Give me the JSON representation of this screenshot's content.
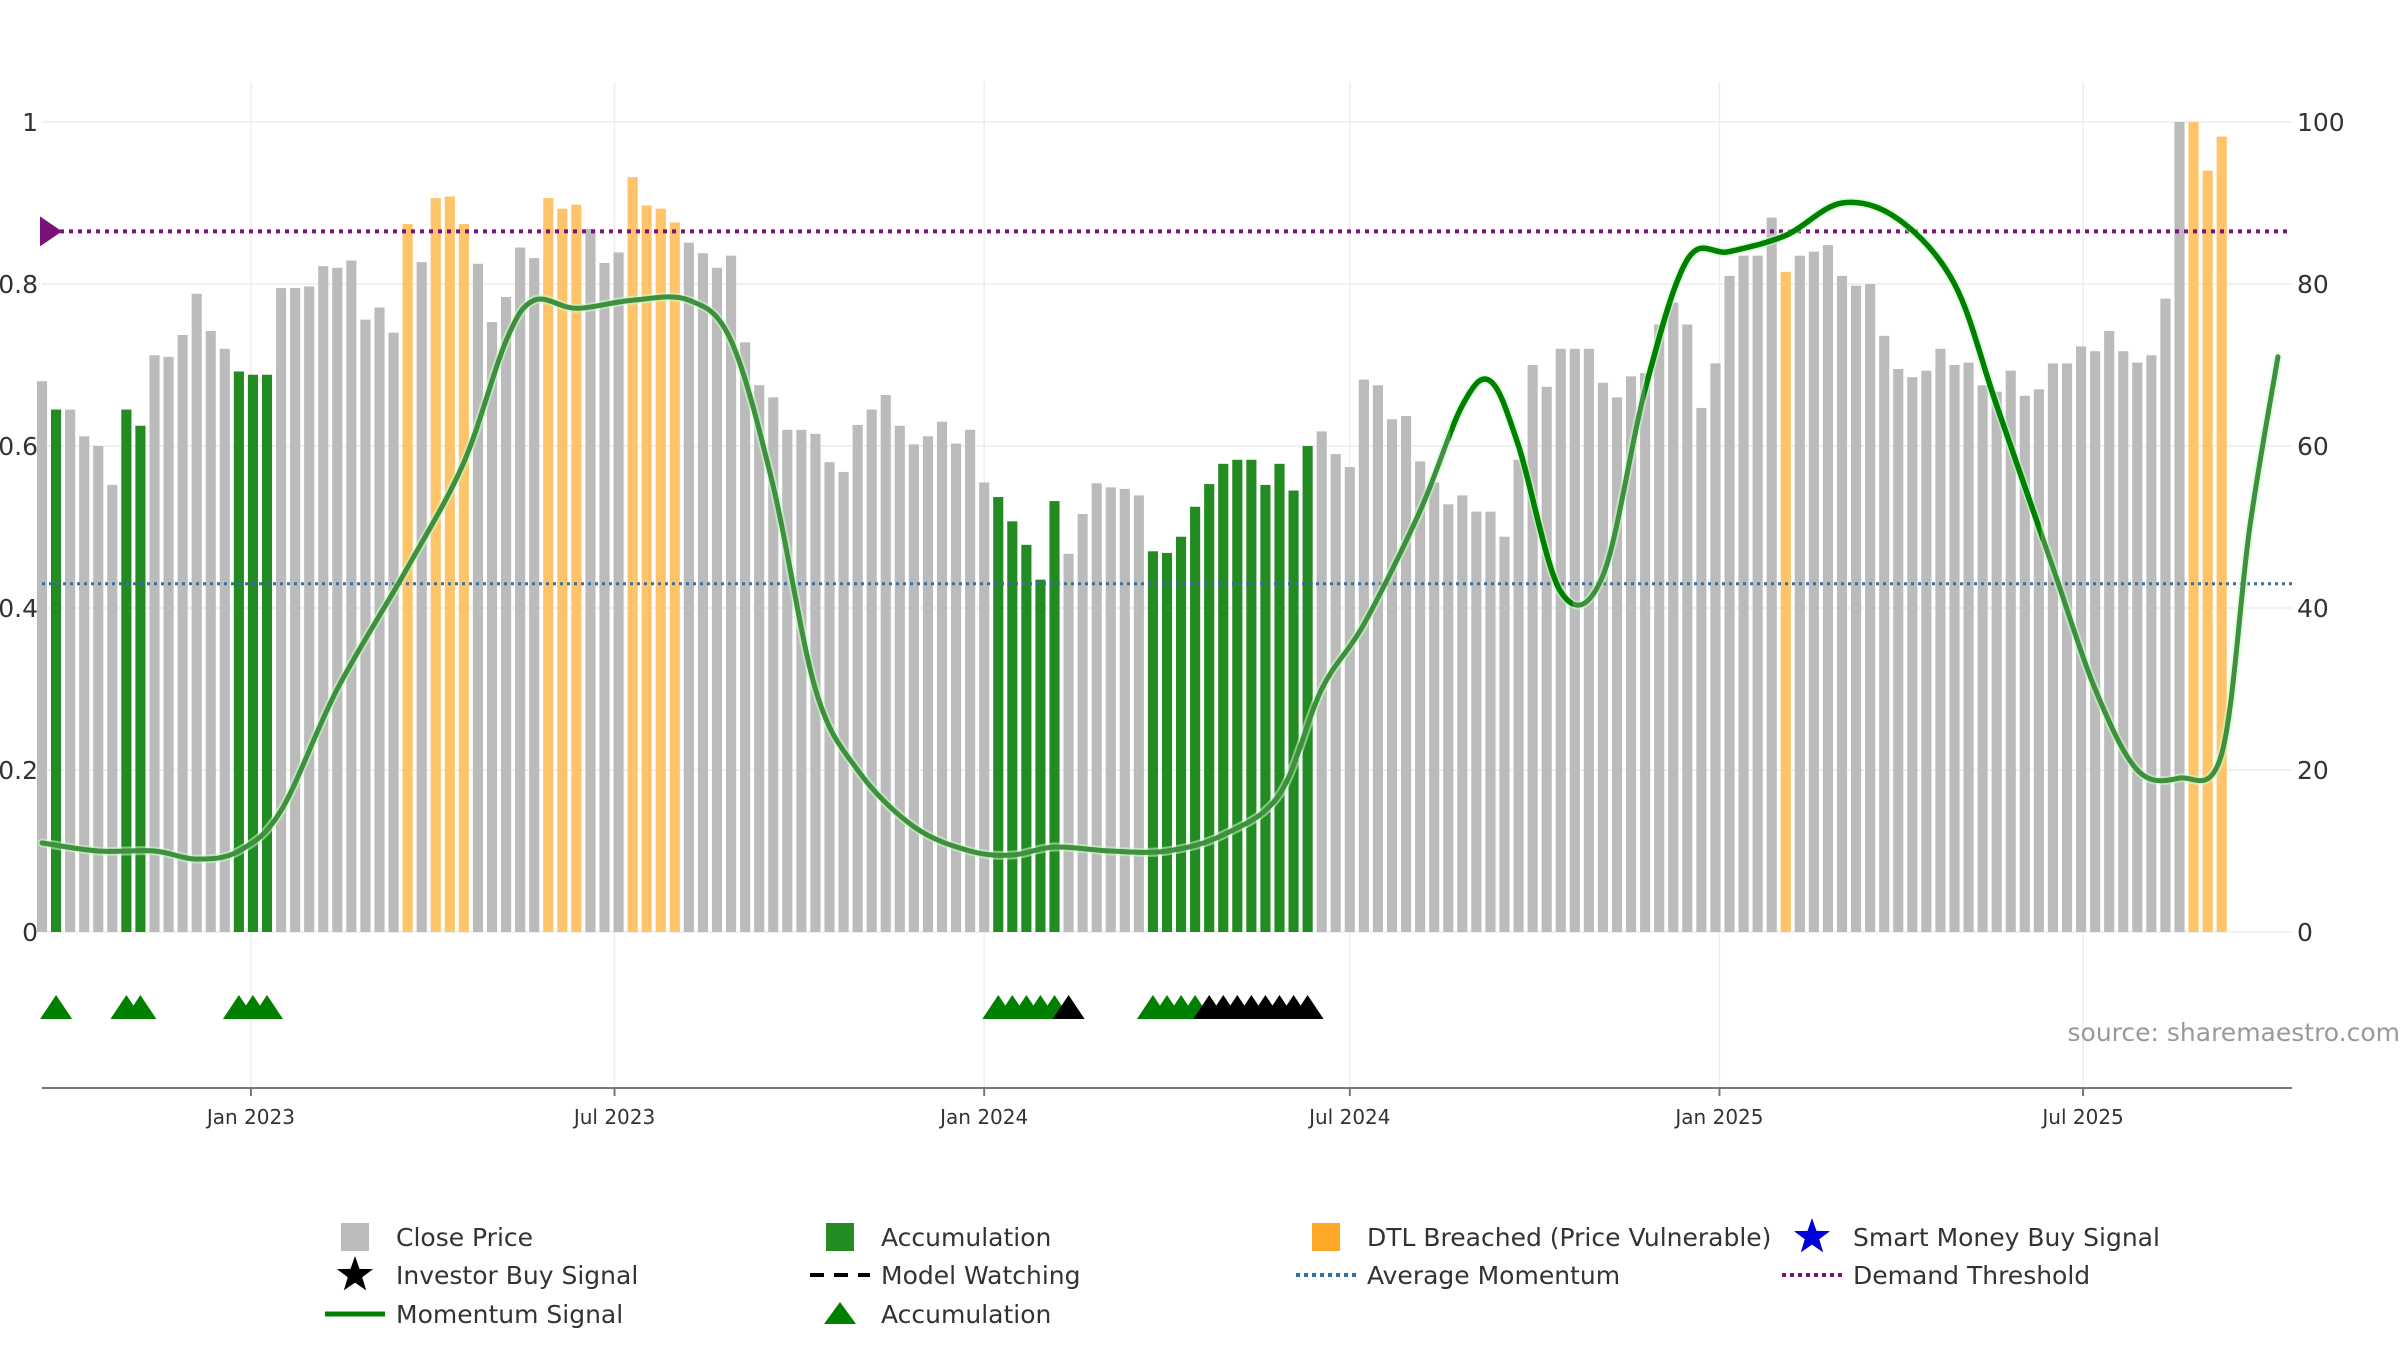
{
  "chart_data": {
    "type": "bar",
    "title": "",
    "source": "source: sharemaestro.com",
    "y_left": {
      "range": [
        0,
        1
      ],
      "ticks": [
        0,
        0.2,
        0.4,
        0.6,
        0.8,
        1
      ],
      "tick_labels": [
        "0",
        "0.2",
        "0.4",
        "0.6",
        "0.8",
        "1"
      ]
    },
    "y_right": {
      "range": [
        0,
        100
      ],
      "ticks": [
        0,
        20,
        40,
        60,
        80,
        100
      ],
      "tick_labels": [
        "0",
        "20",
        "40",
        "60",
        "80",
        "100"
      ]
    },
    "x_axis": {
      "start": "2022-09-19",
      "end": "2025-10-13",
      "ticks": [
        {
          "date": "2023-01-01",
          "label": "Jan 2023"
        },
        {
          "date": "2023-07-01",
          "label": "Jul 2023"
        },
        {
          "date": "2024-01-01",
          "label": "Jan 2024"
        },
        {
          "date": "2024-07-01",
          "label": "Jul 2024"
        },
        {
          "date": "2025-01-01",
          "label": "Jan 2025"
        },
        {
          "date": "2025-07-01",
          "label": "Jul 2025"
        }
      ]
    },
    "bar_series": {
      "name": "Close Price",
      "week_start": "2022-09-19",
      "week_step_days": 7,
      "values": [
        0.68,
        0.645,
        0.645,
        0.612,
        0.6,
        0.552,
        0.645,
        0.625,
        0.712,
        0.71,
        0.737,
        0.788,
        0.742,
        0.72,
        0.692,
        0.688,
        0.688,
        0.795,
        0.795,
        0.797,
        0.822,
        0.82,
        0.829,
        0.756,
        0.771,
        0.74,
        0.874,
        0.827,
        0.906,
        0.908,
        0.874,
        0.825,
        0.753,
        0.784,
        0.845,
        0.832,
        0.906,
        0.893,
        0.898,
        0.868,
        0.826,
        0.839,
        0.932,
        0.897,
        0.893,
        0.876,
        0.851,
        0.838,
        0.82,
        0.835,
        0.728,
        0.675,
        0.66,
        0.62,
        0.62,
        0.615,
        0.58,
        0.568,
        0.626,
        0.645,
        0.663,
        0.625,
        0.602,
        0.612,
        0.63,
        0.603,
        0.62,
        0.555,
        0.537,
        0.507,
        0.478,
        0.435,
        0.532,
        0.467,
        0.516,
        0.554,
        0.549,
        0.547,
        0.539,
        0.47,
        0.468,
        0.488,
        0.525,
        0.553,
        0.578,
        0.583,
        0.583,
        0.552,
        0.578,
        0.545,
        0.6,
        0.618,
        0.59,
        0.574,
        0.682,
        0.675,
        0.633,
        0.637,
        0.581,
        0.555,
        0.528,
        0.539,
        0.519,
        0.519,
        0.488,
        0.583,
        0.7,
        0.673,
        0.72,
        0.72,
        0.72,
        0.678,
        0.66,
        0.686,
        0.69,
        0.75,
        0.777,
        0.75,
        0.647,
        0.702,
        0.81,
        0.835,
        0.835,
        0.882,
        0.815,
        0.835,
        0.84,
        0.848,
        0.81,
        0.798,
        0.8,
        0.736,
        0.695,
        0.685,
        0.693,
        0.72,
        0.7,
        0.703,
        0.675,
        0.667,
        0.693,
        0.662,
        0.67,
        0.702,
        0.702,
        0.723,
        0.717,
        0.742,
        0.717,
        0.703,
        0.712,
        0.782,
        1.043,
        1.025,
        0.94,
        0.982
      ],
      "color": "#bbbbbb"
    },
    "accumulation_bars": {
      "name": "Accumulation",
      "color": "#228B22",
      "indices": [
        1,
        6,
        7,
        14,
        15,
        16,
        68,
        69,
        70,
        71,
        72,
        79,
        80,
        81,
        82,
        83,
        84,
        85,
        86,
        87,
        88,
        89,
        90
      ]
    },
    "dtl_bars": {
      "name": "DTL Breached (Price Vulnerable)",
      "color": "#FFC46A",
      "indices": [
        26,
        28,
        29,
        30,
        36,
        37,
        38,
        42,
        43,
        44,
        45,
        124,
        153,
        154,
        155,
        156
      ]
    },
    "momentum_signal": {
      "name": "Momentum Signal",
      "axis": "right",
      "points": [
        [
          "2022-09-19",
          11
        ],
        [
          "2022-10-17",
          10
        ],
        [
          "2022-11-14",
          10
        ],
        [
          "2022-12-05",
          9
        ],
        [
          "2022-12-26",
          10
        ],
        [
          "2023-01-16",
          15
        ],
        [
          "2023-02-13",
          30
        ],
        [
          "2023-03-20",
          45
        ],
        [
          "2023-04-17",
          58
        ],
        [
          "2023-05-08",
          73
        ],
        [
          "2023-05-22",
          78
        ],
        [
          "2023-06-12",
          77
        ],
        [
          "2023-07-10",
          78
        ],
        [
          "2023-08-07",
          78
        ],
        [
          "2023-08-28",
          73
        ],
        [
          "2023-09-18",
          55
        ],
        [
          "2023-10-09",
          30
        ],
        [
          "2023-10-30",
          20
        ],
        [
          "2023-11-27",
          13
        ],
        [
          "2023-12-25",
          10
        ],
        [
          "2024-01-15",
          9.5
        ],
        [
          "2024-02-05",
          10.5
        ],
        [
          "2024-03-04",
          10
        ],
        [
          "2024-04-01",
          10
        ],
        [
          "2024-04-29",
          12
        ],
        [
          "2024-05-27",
          17
        ],
        [
          "2024-06-17",
          30
        ],
        [
          "2024-07-08",
          38
        ],
        [
          "2024-08-05",
          52
        ],
        [
          "2024-08-26",
          65
        ],
        [
          "2024-09-09",
          68
        ],
        [
          "2024-09-23",
          60
        ],
        [
          "2024-10-14",
          42
        ],
        [
          "2024-11-04",
          44
        ],
        [
          "2024-11-25",
          67
        ],
        [
          "2024-12-16",
          83
        ],
        [
          "2025-01-06",
          84
        ],
        [
          "2025-02-03",
          86
        ],
        [
          "2025-03-03",
          90
        ],
        [
          "2025-03-31",
          88
        ],
        [
          "2025-04-28",
          80
        ],
        [
          "2025-05-19",
          65
        ],
        [
          "2025-06-16",
          45
        ],
        [
          "2025-07-07",
          30
        ],
        [
          "2025-07-28",
          20
        ],
        [
          "2025-08-18",
          19
        ],
        [
          "2025-09-08",
          22
        ],
        [
          "2025-09-22",
          50
        ],
        [
          "2025-10-06",
          71
        ]
      ],
      "strong_ranges": [
        [
          "2024-08-20",
          "2024-10-20"
        ],
        [
          "2024-11-25",
          "2025-06-10"
        ]
      ]
    },
    "average_momentum": {
      "name": "Average Momentum",
      "value": 0.43,
      "color": "#3a6f9a"
    },
    "demand_threshold": {
      "name": "Demand Threshold",
      "value": 0.865,
      "color": "#7a127a"
    },
    "markers": {
      "accumulation_indices": [
        1,
        6,
        7,
        14,
        15,
        16,
        68,
        69,
        70,
        71,
        72,
        79,
        80,
        81,
        82
      ],
      "investor_buy_indices": [
        73,
        83,
        84,
        85,
        86,
        87,
        88,
        89,
        90
      ]
    },
    "legend": {
      "position": "bottom",
      "items": [
        {
          "label": "Close Price",
          "symbol": "square",
          "color": "#bbbbbb"
        },
        {
          "label": "Accumulation",
          "symbol": "square",
          "color": "#228B22"
        },
        {
          "label": "DTL Breached (Price Vulnerable)",
          "symbol": "square",
          "color": "#FFA726"
        },
        {
          "label": "Smart Money Buy Signal",
          "symbol": "star",
          "color": "#0000dd"
        },
        {
          "label": "Investor Buy Signal",
          "symbol": "star",
          "color": "#000000"
        },
        {
          "label": "Model Watching",
          "symbol": "dash",
          "color": "#000000"
        },
        {
          "label": "Average Momentum",
          "symbol": "dot",
          "color": "#3a6f9a"
        },
        {
          "label": "Demand Threshold",
          "symbol": "dot",
          "color": "#7a127a"
        },
        {
          "label": "Momentum Signal",
          "symbol": "line",
          "color": "#008000"
        },
        {
          "label": "Accumulation",
          "symbol": "triangle",
          "color": "#008000"
        }
      ]
    },
    "grid": true
  }
}
